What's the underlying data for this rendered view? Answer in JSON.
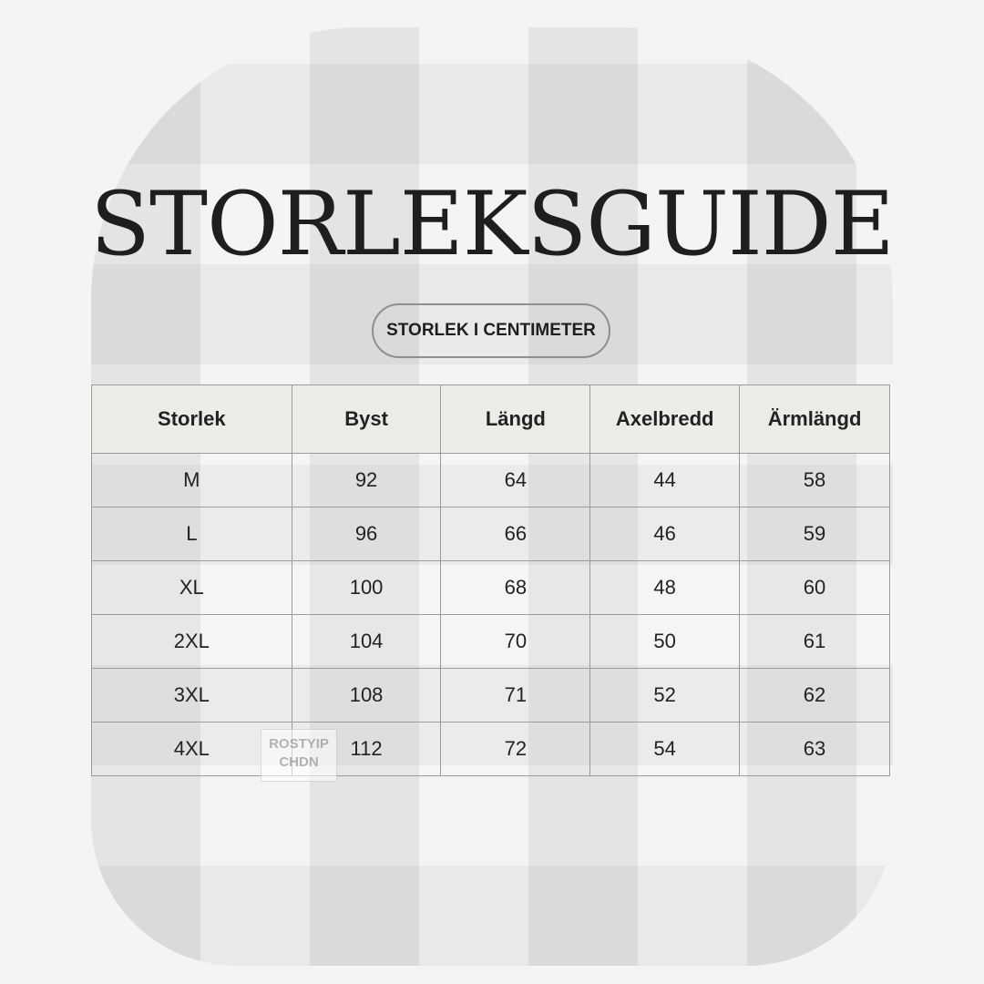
{
  "title": "STORLEKSGUIDE",
  "unit_label": "STORLEK I CENTIMETER",
  "table": {
    "headers": [
      "Storlek",
      "Byst",
      "Längd",
      "Axelbredd",
      "Ärmlängd"
    ],
    "rows": [
      [
        "M",
        "92",
        "64",
        "44",
        "58"
      ],
      [
        "L",
        "96",
        "66",
        "46",
        "59"
      ],
      [
        "XL",
        "100",
        "68",
        "48",
        "60"
      ],
      [
        "2XL",
        "104",
        "70",
        "50",
        "61"
      ],
      [
        "3XL",
        "108",
        "71",
        "52",
        "62"
      ],
      [
        "4XL",
        "112",
        "72",
        "54",
        "63"
      ]
    ]
  },
  "background_label": "ROSTYIP CHDN"
}
